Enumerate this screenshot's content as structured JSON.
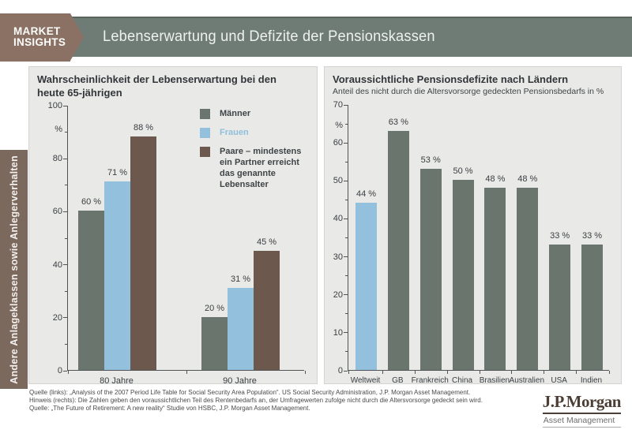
{
  "header": {
    "brand_line1": "MARKET",
    "brand_line2": "INSIGHTS",
    "title": "Lebenserwartung und Defizite der Pensionskassen"
  },
  "sidebar": {
    "label": "Andere Anlageklassen sowie Anlegerverhalten"
  },
  "colors": {
    "band": "#6f7c76",
    "brand_box": "#8a7164",
    "sidebar_tab": "#7c695e",
    "panel_bg": "#e9e9e7",
    "maenner_grey": "#6a756e",
    "frauen_blue": "#93c1dd",
    "paare_brown": "#6d584d"
  },
  "chart_data": [
    {
      "type": "bar",
      "title": "Wahrscheinlichkeit der Lebenserwartung bei den heute 65-jährigen",
      "title_lines": [
        "Wahrscheinlichkeit der Lebenserwartung bei den",
        "heute 65-jährigen"
      ],
      "ylabel": "%",
      "ylim": [
        0,
        100
      ],
      "yticks": [
        0,
        20,
        40,
        60,
        80,
        100
      ],
      "grid": false,
      "legend_position": "upper right",
      "categories": [
        "80 Jahre",
        "90 Jahre"
      ],
      "series": [
        {
          "name": "Männer",
          "color": "#6a756e",
          "values": [
            60,
            20
          ],
          "labels": [
            "60 %",
            "20 %"
          ]
        },
        {
          "name": "Frauen",
          "color": "#93c1dd",
          "values": [
            71,
            31
          ],
          "labels": [
            "71 %",
            "31 %"
          ]
        },
        {
          "name": "Paare – mindestens ein Partner erreicht das genannte Lebensalter",
          "color": "#6d584d",
          "values": [
            88,
            45
          ],
          "labels": [
            "88 %",
            "45 %"
          ]
        }
      ],
      "legend": [
        {
          "label": "Männer",
          "color": "#6a756e",
          "text_color": "#3f4447"
        },
        {
          "label": "Frauen",
          "color": "#93c1dd",
          "text_color": "#8ec0dd"
        },
        {
          "label": "Paare – mindestens ein Partner erreicht das genannte Lebensalter",
          "color": "#6d584d",
          "text_color": "#3f4447"
        }
      ]
    },
    {
      "type": "bar",
      "title": "Voraussichtliche Pensionsdefizite nach Ländern",
      "subtitle": "Anteil des nicht durch die Altersvorsorge gedeckten Pensionsbedarfs in %",
      "ylabel": "%",
      "ylim": [
        0,
        70
      ],
      "yticks": [
        0,
        10,
        20,
        30,
        40,
        50,
        60,
        70
      ],
      "grid": false,
      "categories": [
        "Weltweit",
        "GB",
        "Frankreich",
        "China",
        "Brasilien",
        "Australien",
        "USA",
        "Indien"
      ],
      "values": [
        44,
        63,
        53,
        50,
        48,
        48,
        33,
        33
      ],
      "labels": [
        "44 %",
        "63 %",
        "53 %",
        "50 %",
        "48 %",
        "48 %",
        "33 %",
        "33 %"
      ],
      "bar_colors": [
        "#93c1dd",
        "#6a756e",
        "#6a756e",
        "#6a756e",
        "#6a756e",
        "#6a756e",
        "#6a756e",
        "#6a756e"
      ]
    }
  ],
  "footer": {
    "lines": [
      "Quelle (links): „Analysis of the 2007 Period Life Table for Social Security Area Population“. US Social Security Administration, J.P. Morgan Asset Management.",
      "Hinweis (rechts): Die Zahlen geben den voraussichtlichen Teil des Rentenbedarfs an, der Umfragewerten zufolge nicht durch die Altersvorsorge gedeckt sein wird.",
      "Quelle: „The Future of Retirement: A new reality“ Studie von HSBC, J.P. Morgan Asset Management."
    ]
  },
  "logo": {
    "name": "J.P.Morgan",
    "subtitle": "Asset Management"
  }
}
